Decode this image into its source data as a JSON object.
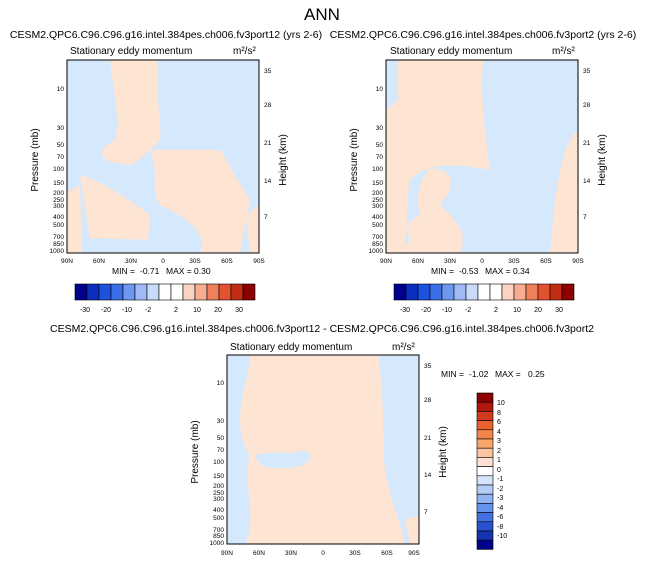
{
  "figure_title": "ANN",
  "colors": {
    "positive_fill": "#fde4d3",
    "negative_fill": "#d6e8fb",
    "frame": "#000000"
  },
  "chart_data": [
    {
      "type": "heatmap",
      "id": "panel1",
      "title": "CESM2.QPC6.C96.C96.g16.intel.384pes.ch006.fv3port12 (yrs 2-6)",
      "subtitle": "Stationary eddy momentum",
      "units": "m²/s²",
      "xlabel": "",
      "ylabel": "Pressure (mb)",
      "ylabel_right": "Height (km)",
      "x_ticks": [
        "90N",
        "60N",
        "30N",
        "0",
        "30S",
        "60S",
        "90S"
      ],
      "y_ticks": [
        "10",
        "30",
        "50",
        "70",
        "100",
        "150",
        "200",
        "250",
        "300",
        "400",
        "500",
        "700",
        "850",
        "1000"
      ],
      "y_ticks_right": [
        "35",
        "28",
        "21",
        "14",
        "7"
      ],
      "stats": {
        "min_label": "MIN =",
        "min": "-0.71",
        "max_label": "MAX =",
        "max": "0.30"
      },
      "colorbar": {
        "orientation": "horizontal",
        "labels": [
          "-30",
          "-20",
          "-10",
          "-2",
          "2",
          "10",
          "20",
          "30"
        ]
      }
    },
    {
      "type": "heatmap",
      "id": "panel2",
      "title": "CESM2.QPC6.C96.C96.g16.intel.384pes.ch006.fv3port2 (yrs 2-6)",
      "subtitle": "Stationary eddy momentum",
      "units": "m²/s²",
      "xlabel": "",
      "ylabel": "Pressure (mb)",
      "ylabel_right": "Height (km)",
      "x_ticks": [
        "90N",
        "60N",
        "30N",
        "0",
        "30S",
        "60S",
        "90S"
      ],
      "y_ticks": [
        "10",
        "30",
        "50",
        "70",
        "100",
        "150",
        "200",
        "250",
        "300",
        "400",
        "500",
        "700",
        "850",
        "1000"
      ],
      "y_ticks_right": [
        "35",
        "28",
        "21",
        "14",
        "7"
      ],
      "stats": {
        "min_label": "MIN =",
        "min": "-0.53",
        "max_label": "MAX =",
        "max": "0.34"
      },
      "colorbar": {
        "orientation": "horizontal",
        "labels": [
          "-30",
          "-20",
          "-10",
          "-2",
          "2",
          "10",
          "20",
          "30"
        ]
      }
    },
    {
      "type": "heatmap",
      "id": "panel3",
      "title": "CESM2.QPC6.C96.C96.g16.intel.384pes.ch006.fv3port12 - CESM2.QPC6.C96.C96.g16.intel.384pes.ch006.fv3port2",
      "subtitle": "Stationary eddy momentum",
      "units": "m²/s²",
      "xlabel": "",
      "ylabel": "Pressure (mb)",
      "ylabel_right": "Height (km)",
      "x_ticks": [
        "90N",
        "60N",
        "30N",
        "0",
        "30S",
        "60S",
        "90S"
      ],
      "y_ticks": [
        "10",
        "30",
        "50",
        "70",
        "100",
        "150",
        "200",
        "250",
        "300",
        "400",
        "500",
        "700",
        "850",
        "1000"
      ],
      "y_ticks_right": [
        "35",
        "28",
        "21",
        "14",
        "7"
      ],
      "stats": {
        "min_label": "MIN =",
        "min": "-1.02",
        "max_label": "MAX =",
        "max": "0.25"
      },
      "colorbar": {
        "orientation": "vertical",
        "labels": [
          "10",
          "8",
          "6",
          "4",
          "3",
          "2",
          "1",
          "0",
          "-1",
          "-2",
          "-3",
          "-4",
          "-6",
          "-8",
          "-10"
        ]
      }
    }
  ]
}
